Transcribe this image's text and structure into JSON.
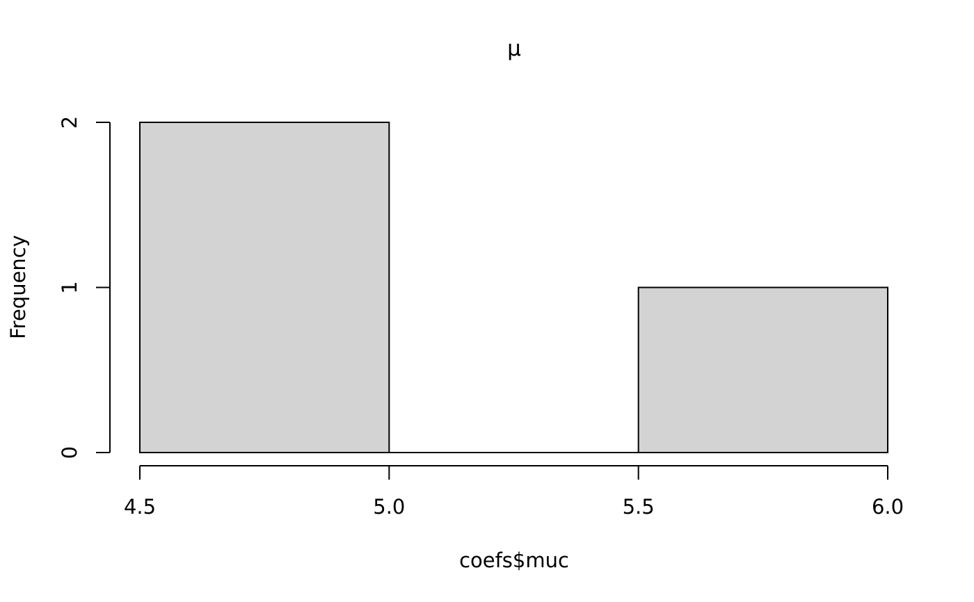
{
  "chart_data": {
    "type": "bar",
    "title": "μ",
    "xlabel": "coefs$muc",
    "ylabel": "Frequency",
    "bins": [
      {
        "start": 4.5,
        "end": 5.0,
        "count": 2
      },
      {
        "start": 5.0,
        "end": 5.5,
        "count": 0
      },
      {
        "start": 5.5,
        "end": 6.0,
        "count": 1
      }
    ],
    "xlim": [
      4.5,
      6.0
    ],
    "ylim": [
      0,
      2
    ],
    "x_ticks": [
      "4.5",
      "5.0",
      "5.5",
      "6.0"
    ],
    "y_ticks": [
      "0",
      "1",
      "2"
    ],
    "grid": false,
    "legend": "none",
    "bar_color": "#d3d3d3",
    "edge_color": "#000000"
  }
}
